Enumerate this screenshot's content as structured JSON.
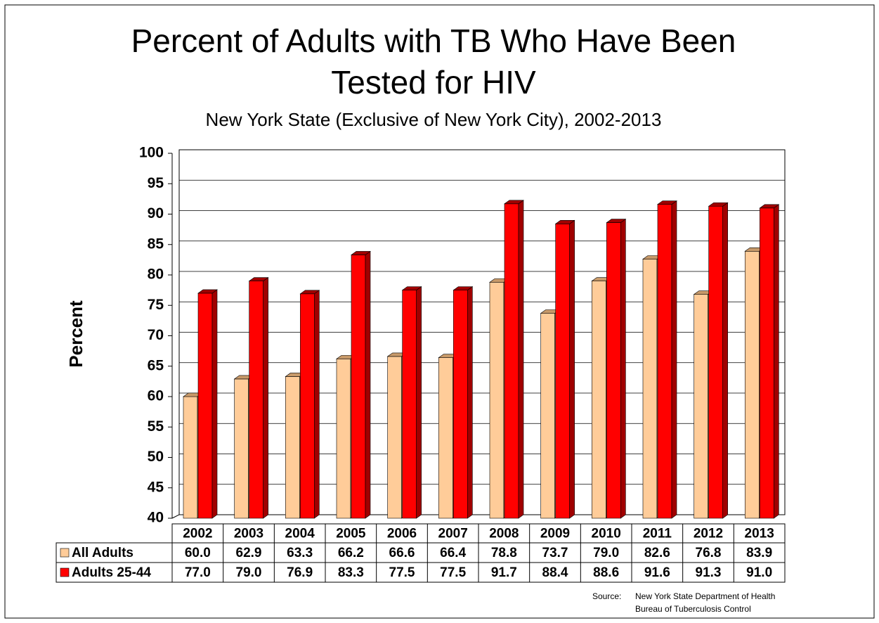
{
  "chart_data": {
    "type": "bar",
    "title_lines": [
      "Percent of Adults with TB Who Have Been",
      "Tested for HIV"
    ],
    "subtitle": "New York State (Exclusive of New York City), 2002-2013",
    "y_label": "Percent",
    "categories": [
      "2002",
      "2003",
      "2004",
      "2005",
      "2006",
      "2007",
      "2008",
      "2009",
      "2010",
      "2011",
      "2012",
      "2013"
    ],
    "series": [
      {
        "name": "All Adults",
        "color": "#FFCC99",
        "values": [
          60,
          62.9,
          63.3,
          66.2,
          66.6,
          66.4,
          78.8,
          73.7,
          79,
          82.6,
          76.8,
          83.9
        ],
        "value_labels": [
          "60.0",
          "62.9",
          "63.3",
          "66.2",
          "66.6",
          "66.4",
          "78.8",
          "73.7",
          "79.0",
          "82.6",
          "76.8",
          "83.9"
        ]
      },
      {
        "name": "Adults 25-44",
        "color": "#FF0000",
        "values": [
          77,
          79,
          76.9,
          83.3,
          77.5,
          77.5,
          91.7,
          88.4,
          88.6,
          91.6,
          91.3,
          91
        ],
        "value_labels": [
          "77.0",
          "79.0",
          "76.9",
          "83.3",
          "77.5",
          "77.5",
          "91.7",
          "88.4",
          "88.6",
          "91.6",
          "91.3",
          "91.0"
        ]
      }
    ],
    "ylim": [
      40,
      100
    ],
    "yticks": [
      40,
      45,
      50,
      55,
      60,
      65,
      70,
      75,
      80,
      85,
      90,
      95,
      100
    ],
    "grid": true,
    "source": {
      "label": "Source:",
      "lines": [
        "New York State Department of Health",
        "Bureau of Tuberculosis Control"
      ]
    }
  }
}
